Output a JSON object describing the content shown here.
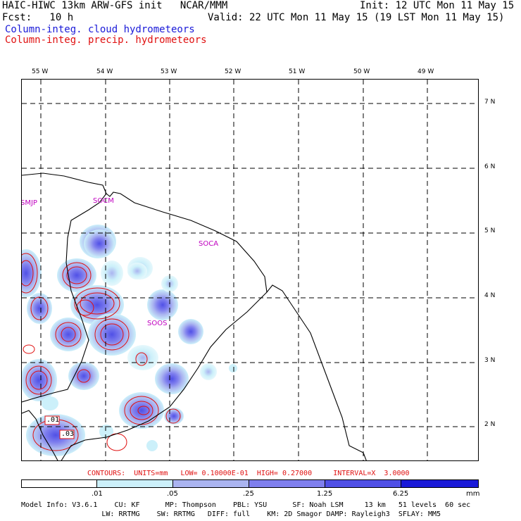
{
  "header": {
    "line1_left": "HAIC-HIWC 13km ARW-GFS init   NCAR/MMM",
    "line1_right": "Init: 12 UTC Mon 11 May 15",
    "line2_left": "Fcst:   10 h",
    "line2_right": "Valid: 22 UTC Mon 11 May 15 (19 LST Mon 11 May 15)",
    "legend_cloud": "Column-integ. cloud hydrometeors",
    "legend_precip": "Column-integ. precip. hydrometeors",
    "cloud_color": "#1a1ad8",
    "precip_color": "#e01010"
  },
  "map": {
    "lon_labels": [
      "55 W",
      "54 W",
      "53 W",
      "52 W",
      "51 W",
      "50 W",
      "49 W"
    ],
    "lat_labels": [
      "7 N",
      "6 N",
      "5 N",
      "4 N",
      "3 N",
      "2 N"
    ],
    "stations": [
      "SMJP",
      "SOCM",
      "SOCA",
      "SOOS"
    ],
    "contour_labels": [
      ".01",
      ".03"
    ]
  },
  "contours_note": "CONTOURS:  UNITS=mm   LOW= 0.10000E-01  HIGH= 0.27000     INTERVAL=X  3.0000",
  "colorbar": {
    "labels": [
      ".01",
      ".05",
      ".25",
      "1.25",
      "6.25"
    ],
    "units": "mm",
    "colors": [
      "#ffffff",
      "#ccf0fa",
      "#aab4f0",
      "#7f7fee",
      "#5050e6",
      "#1a1ad8"
    ]
  },
  "model_info": {
    "line1": "Model Info: V3.6.1    CU: KF      MP: Thompson    PBL: YSU      SF: Noah LSM     13 km   51 levels  60 sec",
    "line2": "                   LW: RRTMG    SW: RRTMG   DIFF: full    KM: 2D Smagor DAMP: Rayleigh3  SFLAY: MM5"
  }
}
